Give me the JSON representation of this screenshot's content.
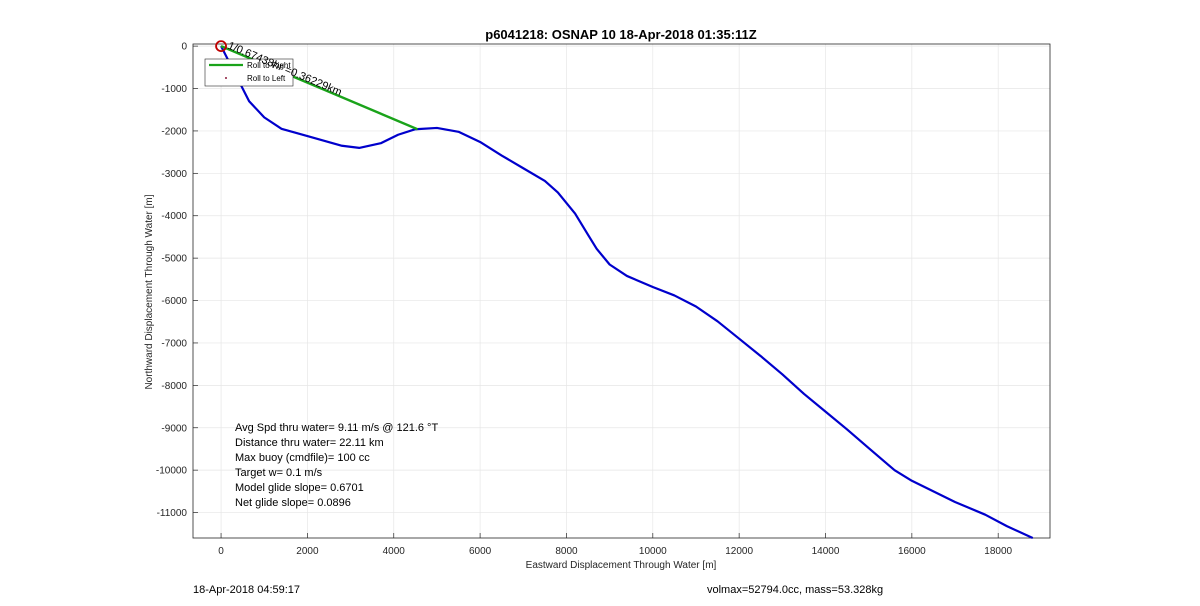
{
  "chart_data": {
    "type": "line",
    "title": "p6041218: OSNAP 10 18-Apr-2018 01:35:11Z",
    "xlabel": "Eastward Displacement Through Water [m]",
    "ylabel": "Northward Displacement Through Water [m]",
    "xlim": [
      -650,
      19200
    ],
    "ylim": [
      -11600,
      50
    ],
    "xticks": [
      0,
      2000,
      4000,
      6000,
      8000,
      10000,
      12000,
      14000,
      16000,
      18000
    ],
    "yticks": [
      0,
      -1000,
      -2000,
      -3000,
      -4000,
      -5000,
      -6000,
      -7000,
      -8000,
      -9000,
      -10000,
      -11000
    ],
    "grid": true,
    "series": [
      {
        "name": "",
        "color": "#0000cc",
        "x": [
          0,
          300,
          650,
          1000,
          1400,
          2000,
          2800,
          3200,
          3700,
          4100,
          4500,
          5000,
          5500,
          6000,
          6500,
          7000,
          7500,
          7800,
          8200,
          8500,
          8700,
          9000,
          9400,
          10000,
          10500,
          11000,
          11500,
          12000,
          12500,
          13000,
          13500,
          14000,
          14500,
          15000,
          15600,
          16000,
          16500,
          17000,
          17700,
          18200,
          18800
        ],
        "y": [
          0,
          -600,
          -1300,
          -1680,
          -1950,
          -2120,
          -2350,
          -2400,
          -2290,
          -2090,
          -1960,
          -1930,
          -2020,
          -2260,
          -2580,
          -2880,
          -3180,
          -3450,
          -3950,
          -4450,
          -4780,
          -5150,
          -5420,
          -5680,
          -5880,
          -6140,
          -6490,
          -6900,
          -7310,
          -7740,
          -8200,
          -8620,
          -9040,
          -9480,
          -10000,
          -10250,
          -10500,
          -10750,
          -11050,
          -11320,
          -11600
        ]
      },
      {
        "name": "Roll to Right",
        "color": "#1aa31a",
        "x": [
          0,
          4550
        ],
        "y": [
          0,
          -1960
        ]
      }
    ],
    "legend": {
      "placement": "top-left",
      "entries": [
        "Roll to Right",
        "Roll to Left"
      ]
    },
    "start_marker": {
      "x": 0,
      "y": 0,
      "color": "#c00000"
    },
    "segment_label": "1/0.67438hr =0.36229km",
    "annotations": [
      "Avg Spd thru water=  9.11 m/s @ 121.6 °T",
      "Distance thru water= 22.11 km",
      "Max buoy (cmdfile)= 100 cc",
      "Target w= 0.1 m/s",
      "Model glide slope= 0.6701",
      "Net glide slope= 0.0896"
    ]
  },
  "footer": {
    "timestamp": "18-Apr-2018 04:59:17",
    "summary": "volmax=52794.0cc, mass=53.328kg"
  }
}
